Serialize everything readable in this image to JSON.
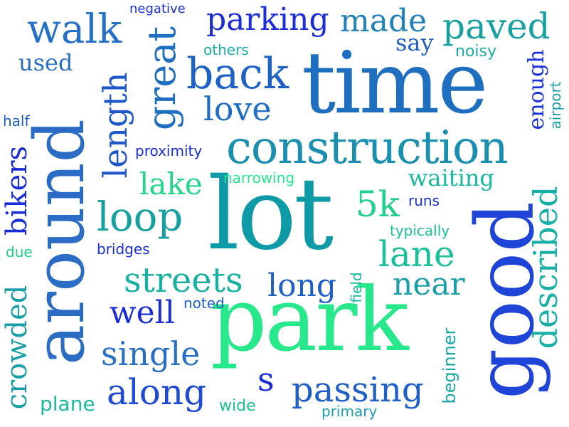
{
  "words": {
    "lot": "lot",
    "park": "park",
    "time": "time",
    "good": "good",
    "around": "around",
    "construction": "construction",
    "back": "back",
    "walk": "walk",
    "great": "great",
    "loop": "loop",
    "love": "love",
    "length": "length",
    "parking": "parking",
    "made": "made",
    "paved": "paved",
    "streets": "streets",
    "passing": "passing",
    "along": "along",
    "single": "single",
    "described": "described",
    "lane": "lane",
    "long": "long",
    "near": "near",
    "well": "well",
    "5k": "5k",
    "lake": "lake",
    "waiting": "waiting",
    "bikers": "bikers",
    "crowded": "crowded",
    "s": "s",
    "used": "used",
    "say": "say",
    "noisy": "noisy",
    "enough": "enough",
    "airport": "airport",
    "negative": "negative",
    "others": "others",
    "half": "half",
    "proximity": "proximity",
    "narrowing": "narrowing",
    "runs": "runs",
    "typically": "typically",
    "due": "due",
    "bridges": "bridges",
    "noted": "noted",
    "field": "field",
    "beginner": "beginner",
    "plane": "plane",
    "wide": "wide",
    "primary": "primary"
  },
  "colors": {
    "blue_dark": "#1a22d6",
    "blue_mid": "#1f5fc8",
    "blue_steel": "#2b78c0",
    "teal": "#0f9aa8",
    "teal_green": "#16b79e",
    "green": "#1fd38a",
    "mint": "#28e88c",
    "royal": "#2a3ee0"
  }
}
